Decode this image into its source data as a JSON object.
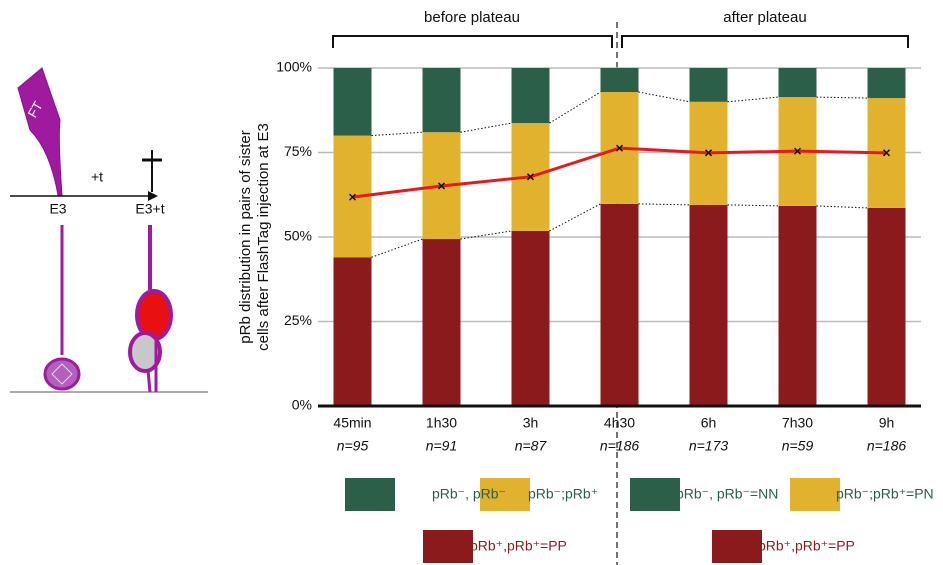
{
  "chart_data": {
    "type": "bar",
    "stacked": true,
    "y_label": [
      "pRb distribution in pairs of sister",
      "cells after FlashTag injection at E3"
    ],
    "annotations": [
      "before plateau",
      "after plateau"
    ],
    "categories": [
      "45min",
      "1h30",
      "3h",
      "4h30",
      "6h",
      "7h30",
      "9h"
    ],
    "sample_sizes": [
      "n=95",
      "n=91",
      "n=87",
      "n=186",
      "n=173",
      "n=59",
      "n=186"
    ],
    "series": [
      {
        "name": "pRb⁺,pRb⁺=PP",
        "color": "#8b1a1c",
        "values": [
          44,
          49.4,
          51.8,
          59.8,
          59.5,
          59.2,
          58.6
        ]
      },
      {
        "name": "pRb⁻;pRb⁺=PN",
        "color": "#e1b22e",
        "values": [
          36,
          31.6,
          31.9,
          33.1,
          30.5,
          32.2,
          32.5
        ]
      },
      {
        "name": "pRb⁻, pRb⁻=NN",
        "color": "#2c5f49",
        "values": [
          20,
          19,
          16.3,
          7.1,
          10,
          8.6,
          8.9
        ]
      }
    ],
    "legend_left": [
      "pRb⁺,pRb⁺=PP",
      "pRb⁻;pRb⁺",
      "pRb⁻, pRb⁻"
    ],
    "mean_line": {
      "color": "#e8191c",
      "values": [
        61.8,
        65.1,
        67.8,
        76.3,
        74.9,
        75.4,
        74.9
      ]
    },
    "ylim": [
      0,
      100
    ],
    "yticks": [
      {
        "value": 0,
        "label": "0%"
      },
      {
        "value": 25,
        "label": "25%"
      },
      {
        "value": 50,
        "label": "50%"
      },
      {
        "value": 75,
        "label": "75%"
      },
      {
        "value": 100,
        "label": "100%"
      }
    ],
    "grid": true
  },
  "schematic": {
    "pipette": "FT",
    "step": "+t",
    "start": "E3",
    "end": "E3+t"
  }
}
